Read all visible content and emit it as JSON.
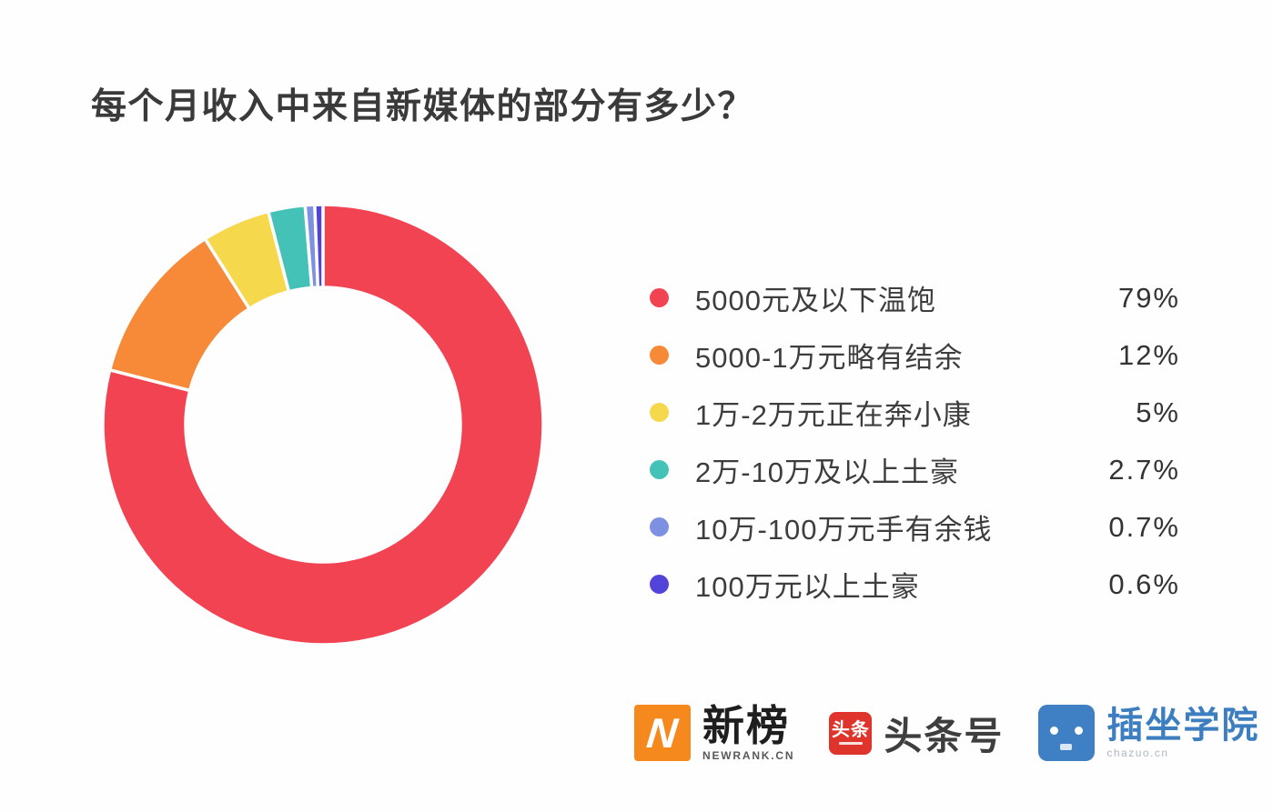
{
  "title": "每个月收入中来自新媒体的部分有多少？",
  "chart_data": {
    "type": "pie",
    "variant": "donut",
    "title": "每个月收入中来自新媒体的部分有多少？",
    "start_angle_deg": 0,
    "direction": "clockwise",
    "legend_position": "right",
    "total": 100,
    "slices": [
      {
        "label": "5000元及以下温饱",
        "value": 79,
        "display": "79%",
        "color": "#f24353"
      },
      {
        "label": "5000-1万元略有结余",
        "value": 12,
        "display": "12%",
        "color": "#f78a38"
      },
      {
        "label": "1万-2万元正在奔小康",
        "value": 5,
        "display": "5%",
        "color": "#f6d84c"
      },
      {
        "label": "2万-10万及以上土豪",
        "value": 2.7,
        "display": "2.7%",
        "color": "#45c2b8"
      },
      {
        "label": "10万-100万元手有余钱",
        "value": 0.7,
        "display": "0.7%",
        "color": "#7e90e2"
      },
      {
        "label": "100万元以上土豪",
        "value": 0.6,
        "display": "0.6%",
        "color": "#5244d8"
      }
    ]
  },
  "footer": {
    "newrank": {
      "icon_letter": "N",
      "icon_color": "#f6891e",
      "name": "新榜",
      "sub": "NEWRANK.CN"
    },
    "toutiao": {
      "icon_text": "头条",
      "icon_color": "#de342b",
      "name": "头条号"
    },
    "chazuo": {
      "icon_color": "#3f80c4",
      "name": "插坐学院",
      "sub": "chazuo.cn"
    }
  }
}
